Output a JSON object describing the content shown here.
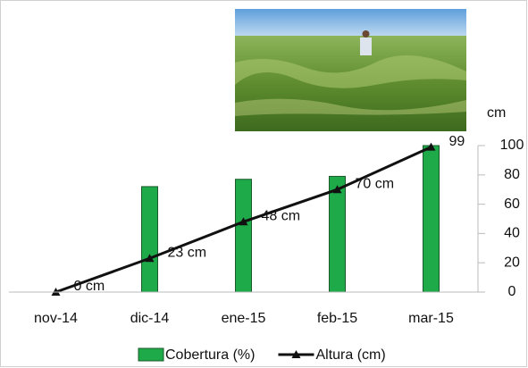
{
  "chart_data": {
    "type": "bar-line",
    "y_label": "cm",
    "categories": [
      "nov-14",
      "dic-14",
      "ene-15",
      "feb-15",
      "mar-15"
    ],
    "series": [
      {
        "name": "Cobertura (%)",
        "type": "bar",
        "color": "#1faa4a",
        "values": [
          0,
          72,
          77,
          79,
          100
        ]
      },
      {
        "name": "Altura (cm)",
        "type": "line",
        "color": "#111111",
        "values": [
          0,
          23,
          48,
          70,
          99
        ],
        "value_labels": [
          "0 cm",
          "23 cm",
          "48 cm",
          "70 cm",
          "99"
        ]
      }
    ],
    "ylim": [
      0,
      100
    ],
    "yticks": [
      0,
      20,
      40,
      60,
      80,
      100
    ],
    "y_axis_side": "right"
  }
}
